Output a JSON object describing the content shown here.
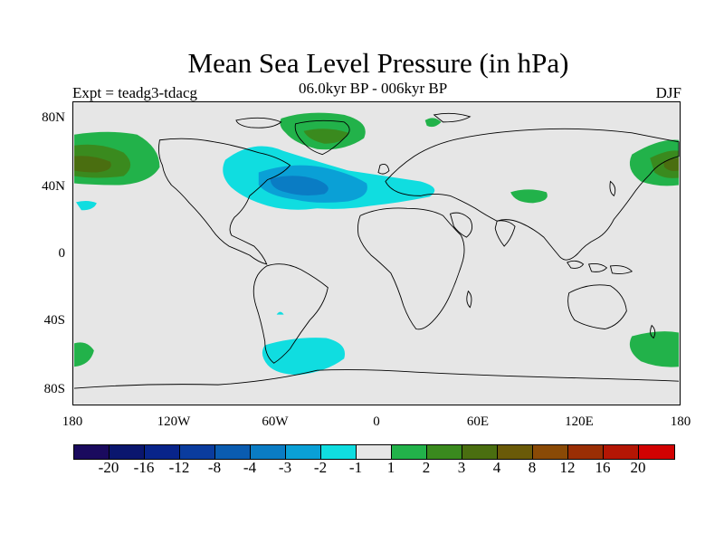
{
  "title": "Mean Sea Level Pressure (in hPa)",
  "experiment_label": "Expt = teadg3-tdacg",
  "period_label": "06.0kyr BP - 006kyr BP",
  "season_label": "DJF",
  "map": {
    "projection": "cylindrical equidistant",
    "lat_ticks": [
      "80N",
      "40N",
      "0",
      "40S",
      "80S"
    ],
    "lon_ticks": [
      "180",
      "120W",
      "60W",
      "0",
      "60E",
      "120E",
      "180"
    ],
    "background_color": "#e6e6e6",
    "coastline_color": "#000000"
  },
  "colorbar": {
    "colors": [
      "#1a0a5e",
      "#0a166e",
      "#08248a",
      "#0a3c9e",
      "#0a5cb0",
      "#0a7cc4",
      "#0aa0d6",
      "#10dde0",
      "#e6e6e6",
      "#22b24a",
      "#3a8a1e",
      "#4a6e10",
      "#6a5a08",
      "#8a4a06",
      "#9a2e04",
      "#b41604",
      "#d20202"
    ],
    "tick_labels": [
      "-20",
      "-16",
      "-12",
      "-8",
      "-4",
      "-3",
      "-2",
      "-1",
      "1",
      "2",
      "3",
      "4",
      "8",
      "12",
      "16",
      "20"
    ]
  },
  "contour_regions": [
    {
      "region": "North Atlantic low anomaly",
      "min_level": -3
    },
    {
      "region": "Southern Atlantic (~60S) low anomaly",
      "min_level": -2
    },
    {
      "region": "Greenland high anomaly",
      "max_level": 3
    },
    {
      "region": "North Pacific high anomaly",
      "max_level": 4
    },
    {
      "region": "Central Asia high anomaly",
      "max_level": 2
    },
    {
      "region": "South Pacific (~60S) high anomaly",
      "max_level": 2
    }
  ]
}
